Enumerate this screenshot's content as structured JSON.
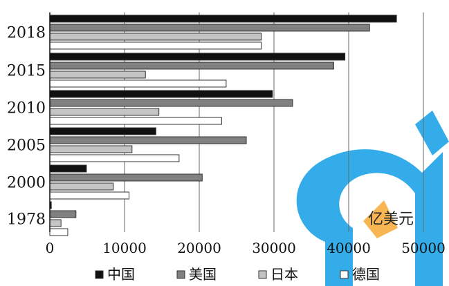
{
  "chart_data": {
    "type": "bar",
    "orientation": "horizontal",
    "categories": [
      "2018",
      "2015",
      "2010",
      "2005",
      "2000",
      "1978"
    ],
    "series": [
      {
        "name": "中国",
        "values": [
          46400,
          39500,
          29800,
          14200,
          4900,
          200
        ]
      },
      {
        "name": "美国",
        "values": [
          42800,
          38000,
          32500,
          26300,
          20400,
          3500
        ]
      },
      {
        "name": "日本",
        "values": [
          28300,
          12800,
          14600,
          11000,
          8500,
          1500
        ]
      },
      {
        "name": "德国",
        "values": [
          28300,
          23600,
          23000,
          17300,
          10600,
          2400
        ]
      }
    ],
    "xlim": [
      0,
      50000
    ],
    "x_ticks": [
      "0",
      "10000",
      "20000",
      "30000",
      "40000",
      "50000"
    ],
    "unit_label": "亿美元",
    "grid": true,
    "legend_position": "bottom",
    "colors": {
      "中国": "#111111",
      "美国": "#808080",
      "日本": "#c4c4c4",
      "德国": "#ffffff",
      "outline": "#333333",
      "grid": "#666666",
      "watermark_blue": "#2aa8e8",
      "watermark_orange": "#f8b24a"
    }
  }
}
